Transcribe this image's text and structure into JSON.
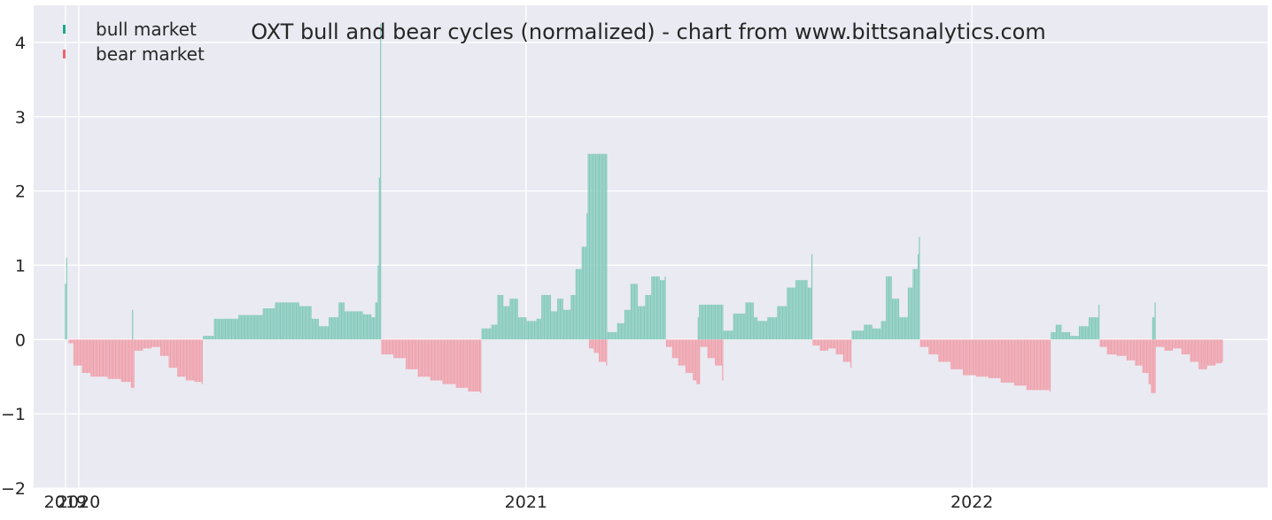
{
  "chart_data": {
    "type": "bar",
    "title": "OXT bull and bear cycles (normalized)  - chart from www.bittsanalytics.com",
    "xlabel": "",
    "ylabel": "",
    "x_ticks": [
      {
        "date": "2019-12-21",
        "label": "2019"
      },
      {
        "date": "2020-01-01",
        "label": "2020"
      },
      {
        "date": "2021-01-01",
        "label": "2021"
      },
      {
        "date": "2022-01-01",
        "label": "2022"
      }
    ],
    "xlim": [
      "2019-11-25",
      "2022-08-31"
    ],
    "ylim": [
      -2,
      4.5
    ],
    "y_ticks": [
      -2,
      -1,
      0,
      1,
      2,
      3,
      4
    ],
    "y_tick_labels": [
      "−2",
      "−1",
      "0",
      "1",
      "2",
      "3",
      "4"
    ],
    "grid": true,
    "legend_position": "top-left",
    "legend": [
      {
        "label": "bull market",
        "color": "#1aa88a"
      },
      {
        "label": "bear market",
        "color": "#f0606e"
      }
    ],
    "series": [
      {
        "name": "bull market",
        "color": "#82cabb",
        "points": [
          [
            "2019-12-21",
            0.75
          ],
          [
            "2019-12-22",
            1.1
          ],
          [
            "2019-12-23",
            0.0
          ],
          [
            "2020-02-14",
            0.4
          ],
          [
            "2020-04-12",
            0.05
          ],
          [
            "2020-04-21",
            0.28
          ],
          [
            "2020-05-11",
            0.33
          ],
          [
            "2020-05-31",
            0.42
          ],
          [
            "2020-06-10",
            0.5
          ],
          [
            "2020-06-30",
            0.45
          ],
          [
            "2020-07-10",
            0.28
          ],
          [
            "2020-07-16",
            0.18
          ],
          [
            "2020-07-24",
            0.3
          ],
          [
            "2020-08-01",
            0.5
          ],
          [
            "2020-08-06",
            0.38
          ],
          [
            "2020-08-21",
            0.34
          ],
          [
            "2020-08-28",
            0.3
          ],
          [
            "2020-08-31",
            0.5
          ],
          [
            "2020-09-02",
            1.0
          ],
          [
            "2020-09-03",
            2.18
          ],
          [
            "2020-09-04",
            4.25
          ],
          [
            "2020-11-26",
            0.15
          ],
          [
            "2020-12-04",
            0.2
          ],
          [
            "2020-12-09",
            0.6
          ],
          [
            "2020-12-14",
            0.45
          ],
          [
            "2020-12-19",
            0.55
          ],
          [
            "2020-12-26",
            0.3
          ],
          [
            "2021-01-02",
            0.25
          ],
          [
            "2021-01-10",
            0.28
          ],
          [
            "2021-01-14",
            0.6
          ],
          [
            "2021-01-22",
            0.38
          ],
          [
            "2021-01-27",
            0.55
          ],
          [
            "2021-02-01",
            0.4
          ],
          [
            "2021-02-07",
            0.6
          ],
          [
            "2021-02-11",
            0.95
          ],
          [
            "2021-02-16",
            1.25
          ],
          [
            "2021-02-20",
            1.7
          ],
          [
            "2021-02-21",
            2.5
          ],
          [
            "2021-03-09",
            0.1
          ],
          [
            "2021-03-17",
            0.22
          ],
          [
            "2021-03-23",
            0.4
          ],
          [
            "2021-03-28",
            0.75
          ],
          [
            "2021-04-03",
            0.45
          ],
          [
            "2021-04-09",
            0.6
          ],
          [
            "2021-04-14",
            0.85
          ],
          [
            "2021-04-21",
            0.8
          ],
          [
            "2021-04-25",
            0.85
          ],
          [
            "2021-05-22",
            0.3
          ],
          [
            "2021-05-23",
            0.47
          ],
          [
            "2021-06-12",
            0.12
          ],
          [
            "2021-06-20",
            0.35
          ],
          [
            "2021-06-30",
            0.5
          ],
          [
            "2021-07-07",
            0.3
          ],
          [
            "2021-07-10",
            0.25
          ],
          [
            "2021-07-18",
            0.3
          ],
          [
            "2021-07-26",
            0.45
          ],
          [
            "2021-08-03",
            0.7
          ],
          [
            "2021-08-10",
            0.8
          ],
          [
            "2021-08-20",
            0.7
          ],
          [
            "2021-08-23",
            1.15
          ],
          [
            "2021-09-25",
            0.12
          ],
          [
            "2021-10-05",
            0.2
          ],
          [
            "2021-10-12",
            0.15
          ],
          [
            "2021-10-19",
            0.25
          ],
          [
            "2021-10-23",
            0.85
          ],
          [
            "2021-10-28",
            0.55
          ],
          [
            "2021-11-03",
            0.3
          ],
          [
            "2021-11-10",
            0.7
          ],
          [
            "2021-11-14",
            0.95
          ],
          [
            "2021-11-18",
            1.15
          ],
          [
            "2021-11-19",
            1.38
          ],
          [
            "2022-03-07",
            0.1
          ],
          [
            "2022-03-11",
            0.2
          ],
          [
            "2022-03-16",
            0.1
          ],
          [
            "2022-03-23",
            0.05
          ],
          [
            "2022-03-30",
            0.18
          ],
          [
            "2022-04-07",
            0.3
          ],
          [
            "2022-04-15",
            0.47
          ],
          [
            "2022-05-29",
            0.3
          ],
          [
            "2022-05-31",
            0.5
          ]
        ]
      },
      {
        "name": "bear market",
        "color": "#f0a0ab",
        "points": [
          [
            "2019-12-24",
            -0.05
          ],
          [
            "2019-12-28",
            -0.35
          ],
          [
            "2020-01-04",
            -0.45
          ],
          [
            "2020-01-11",
            -0.5
          ],
          [
            "2020-01-25",
            -0.53
          ],
          [
            "2020-02-05",
            -0.57
          ],
          [
            "2020-02-13",
            -0.65
          ],
          [
            "2020-02-16",
            -0.15
          ],
          [
            "2020-02-23",
            -0.12
          ],
          [
            "2020-03-01",
            -0.1
          ],
          [
            "2020-03-08",
            -0.22
          ],
          [
            "2020-03-15",
            -0.38
          ],
          [
            "2020-03-22",
            -0.5
          ],
          [
            "2020-03-29",
            -0.55
          ],
          [
            "2020-04-05",
            -0.57
          ],
          [
            "2020-04-11",
            -0.6
          ],
          [
            "2020-09-05",
            -0.2
          ],
          [
            "2020-09-15",
            -0.25
          ],
          [
            "2020-09-25",
            -0.4
          ],
          [
            "2020-10-05",
            -0.5
          ],
          [
            "2020-10-15",
            -0.55
          ],
          [
            "2020-10-25",
            -0.6
          ],
          [
            "2020-11-05",
            -0.65
          ],
          [
            "2020-11-15",
            -0.7
          ],
          [
            "2020-11-25",
            -0.72
          ],
          [
            "2021-02-22",
            -0.12
          ],
          [
            "2021-02-26",
            -0.18
          ],
          [
            "2021-03-02",
            -0.3
          ],
          [
            "2021-03-08",
            -0.35
          ],
          [
            "2021-04-26",
            -0.1
          ],
          [
            "2021-05-01",
            -0.25
          ],
          [
            "2021-05-06",
            -0.35
          ],
          [
            "2021-05-12",
            -0.45
          ],
          [
            "2021-05-18",
            -0.55
          ],
          [
            "2021-05-21",
            -0.6
          ],
          [
            "2021-05-24",
            -0.1
          ],
          [
            "2021-05-30",
            -0.25
          ],
          [
            "2021-06-05",
            -0.35
          ],
          [
            "2021-06-11",
            -0.55
          ],
          [
            "2021-08-24",
            -0.08
          ],
          [
            "2021-08-30",
            -0.15
          ],
          [
            "2021-09-06",
            -0.12
          ],
          [
            "2021-09-12",
            -0.2
          ],
          [
            "2021-09-18",
            -0.3
          ],
          [
            "2021-09-24",
            -0.38
          ],
          [
            "2021-11-20",
            -0.1
          ],
          [
            "2021-11-27",
            -0.2
          ],
          [
            "2021-12-05",
            -0.3
          ],
          [
            "2021-12-15",
            -0.4
          ],
          [
            "2021-12-25",
            -0.48
          ],
          [
            "2022-01-05",
            -0.5
          ],
          [
            "2022-01-15",
            -0.52
          ],
          [
            "2022-01-25",
            -0.58
          ],
          [
            "2022-02-05",
            -0.62
          ],
          [
            "2022-02-15",
            -0.68
          ],
          [
            "2022-02-25",
            -0.68
          ],
          [
            "2022-03-06",
            -0.7
          ],
          [
            "2022-04-16",
            -0.1
          ],
          [
            "2022-04-22",
            -0.2
          ],
          [
            "2022-04-30",
            -0.22
          ],
          [
            "2022-05-08",
            -0.28
          ],
          [
            "2022-05-15",
            -0.35
          ],
          [
            "2022-05-21",
            -0.45
          ],
          [
            "2022-05-26",
            -0.6
          ],
          [
            "2022-05-28",
            -0.72
          ],
          [
            "2022-06-01",
            -0.1
          ],
          [
            "2022-06-08",
            -0.15
          ],
          [
            "2022-06-15",
            -0.12
          ],
          [
            "2022-06-22",
            -0.2
          ],
          [
            "2022-06-29",
            -0.3
          ],
          [
            "2022-07-06",
            -0.4
          ],
          [
            "2022-07-13",
            -0.35
          ],
          [
            "2022-07-20",
            -0.32
          ],
          [
            "2022-07-25",
            -0.3
          ]
        ]
      }
    ]
  }
}
